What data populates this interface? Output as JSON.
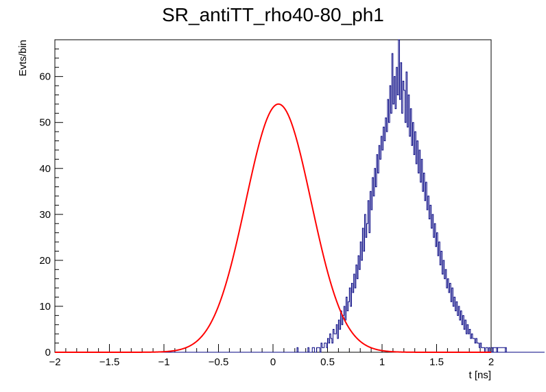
{
  "chart_data": {
    "type": "histogram",
    "title": "SR_antiTT_rho40-80_ph1",
    "xlabel": "t [ns]",
    "ylabel": "Evts/bin",
    "xlim": [
      -2,
      2
    ],
    "ylim": [
      0,
      68
    ],
    "x_ticks": [
      -2,
      -1.5,
      -1,
      -0.5,
      0,
      0.5,
      1,
      1.5,
      2
    ],
    "x_tick_labels": [
      "−2",
      "−1.5",
      "−1",
      "−0.5",
      "0",
      "0.5",
      "1",
      "1.5",
      "2"
    ],
    "y_ticks": [
      0,
      10,
      20,
      30,
      40,
      50,
      60
    ],
    "y_tick_labels": [
      "0",
      "10",
      "20",
      "30",
      "40",
      "50",
      "60"
    ],
    "grid": false,
    "series": [
      {
        "kind": "histogram",
        "color": "#000080",
        "bin_width": 0.01,
        "bins_x_start": -2.0,
        "counts_note": "counts per bin from x = -2.00 to 2.00 in steps of 0.01",
        "counts": [
          0,
          0,
          0,
          0,
          0,
          0,
          0,
          0,
          0,
          0,
          0,
          0,
          0,
          0,
          0,
          0,
          0,
          0,
          0,
          0,
          0,
          0,
          0,
          0,
          0,
          0,
          0,
          0,
          0,
          0,
          0,
          0,
          0,
          0,
          0,
          0,
          0,
          0,
          0,
          0,
          0,
          0,
          0,
          0,
          0,
          0,
          0,
          0,
          0,
          0,
          0,
          0,
          0,
          0,
          0,
          0,
          0,
          0,
          0,
          0,
          0,
          0,
          0,
          0,
          0,
          0,
          0,
          0,
          0,
          0,
          0,
          0,
          0,
          0,
          0,
          0,
          0,
          0,
          0,
          0,
          0,
          0,
          0,
          0,
          0,
          0,
          0,
          0,
          0,
          0,
          0,
          0,
          0,
          0,
          0,
          0,
          0,
          0,
          0,
          0,
          0,
          0,
          0,
          0,
          0,
          0,
          0,
          0,
          0,
          0,
          0,
          0,
          0,
          0,
          0,
          0,
          0,
          0,
          0,
          0,
          0,
          0,
          0,
          0,
          0,
          0,
          0,
          0,
          0,
          0,
          0,
          0,
          0,
          0,
          0,
          0,
          0,
          0,
          0,
          0,
          0,
          0,
          0,
          0,
          0,
          0,
          0,
          0,
          0,
          0,
          0,
          0,
          0,
          0,
          0,
          0,
          0,
          0,
          0,
          0,
          0,
          0,
          0,
          0,
          0,
          0,
          0,
          0,
          0,
          0,
          0,
          0,
          0,
          0,
          0,
          0,
          0,
          0,
          0,
          0,
          0,
          0,
          0,
          0,
          0,
          0,
          0,
          0,
          0,
          0,
          0,
          0,
          0,
          0,
          0,
          0,
          0,
          0,
          0,
          0,
          0,
          0,
          0,
          0,
          0,
          0,
          0,
          0,
          0,
          0,
          0,
          0,
          0,
          0,
          0,
          0,
          0,
          0,
          0,
          0,
          0,
          0,
          1,
          0,
          0,
          0,
          0,
          0,
          0,
          0,
          0,
          0,
          1,
          0,
          0,
          0,
          1,
          1,
          0,
          0,
          1,
          1,
          1,
          0,
          2,
          1,
          1,
          2,
          2,
          1,
          3,
          2,
          4,
          3,
          2,
          5,
          4,
          4,
          6,
          3,
          7,
          5,
          9,
          6,
          8,
          10,
          7,
          12,
          9,
          11,
          14,
          10,
          15,
          13,
          17,
          14,
          19,
          16,
          21,
          18,
          24,
          20,
          27,
          22,
          30,
          25,
          28,
          33,
          26,
          35,
          31,
          38,
          34,
          40,
          36,
          43,
          39,
          45,
          42,
          47,
          44,
          49,
          46,
          51,
          48,
          55,
          50,
          58,
          52,
          65,
          54,
          60,
          53,
          62,
          56,
          68,
          55,
          63,
          52,
          59,
          57,
          50,
          61,
          49,
          56,
          47,
          53,
          45,
          50,
          43,
          48,
          41,
          46,
          39,
          44,
          37,
          42,
          35,
          39,
          33,
          37,
          31,
          34,
          29,
          32,
          27,
          30,
          25,
          28,
          23,
          26,
          21,
          24,
          19,
          22,
          17,
          20,
          16,
          18,
          14,
          16,
          13,
          15,
          11,
          14,
          10,
          12,
          9,
          11,
          8,
          10,
          7,
          9,
          6,
          8,
          5,
          7,
          4,
          6,
          4,
          5,
          3,
          4,
          3,
          3,
          2,
          3,
          2,
          2,
          1,
          2,
          1,
          1,
          1,
          0,
          1,
          1,
          0,
          1,
          0,
          0,
          1,
          0,
          0,
          0,
          1,
          0,
          0,
          0,
          0,
          0,
          0,
          0,
          1,
          0,
          0,
          0,
          0,
          0,
          0,
          0,
          0,
          0,
          0,
          0,
          0,
          0,
          0,
          0,
          0,
          0,
          0,
          0,
          0,
          0,
          0,
          0,
          0,
          0,
          0,
          0,
          0,
          0,
          0,
          0,
          0,
          0,
          0,
          0,
          0
        ]
      },
      {
        "kind": "fit",
        "function": "gaussian",
        "color": "#ff0000",
        "amplitude": 54,
        "mean": 0.05,
        "sigma": 0.3
      }
    ]
  }
}
